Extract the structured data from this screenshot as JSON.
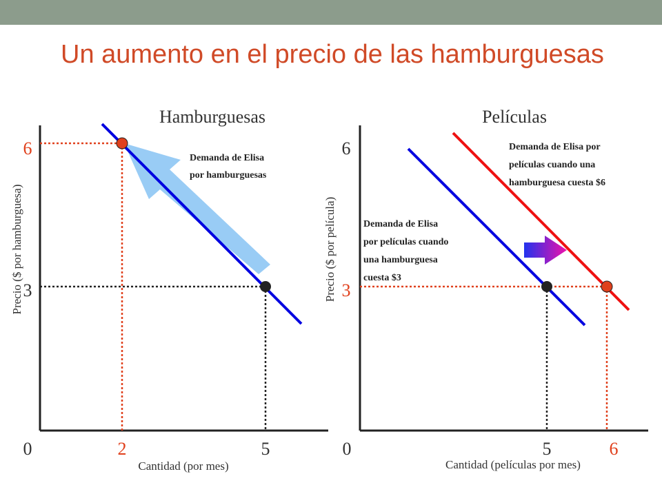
{
  "slide": {
    "title": "Un aumento en el precio de las hamburguesas"
  },
  "left_panel": {
    "heading": "Hamburguesas",
    "y_axis_label": "Precio ($ por hamburguesa)",
    "x_axis_label": "Cantidad (por mes)",
    "origin_label": "0",
    "y_ticks": [
      "6",
      "3"
    ],
    "x_ticks": [
      "2",
      "5"
    ],
    "demand_label_line1": "Demanda de Elisa",
    "demand_label_line2": "por hamburguesas"
  },
  "right_panel": {
    "heading": "Películas",
    "y_axis_label": "Precio ($ por película)",
    "x_axis_label": "Cantidad (películas por mes)",
    "origin_label": "0",
    "y_ticks": [
      "6",
      "3"
    ],
    "x_ticks": [
      "5",
      "6"
    ],
    "demand_new_line1": "Demanda de Elisa por",
    "demand_new_line2": "películas cuando una",
    "demand_new_line3": "hamburguesa cuesta $6",
    "demand_old_line1": "Demanda de Elisa",
    "demand_old_line2": "por películas cuando",
    "demand_old_line3": "una hamburguesa",
    "demand_old_line4": "cuesta $3"
  },
  "colors": {
    "title": "#d04a27",
    "highlight": "#e0401c",
    "demand_old": "#0000e0",
    "demand_new": "#ee1111",
    "movement_arrow": "#99ccf5"
  }
}
